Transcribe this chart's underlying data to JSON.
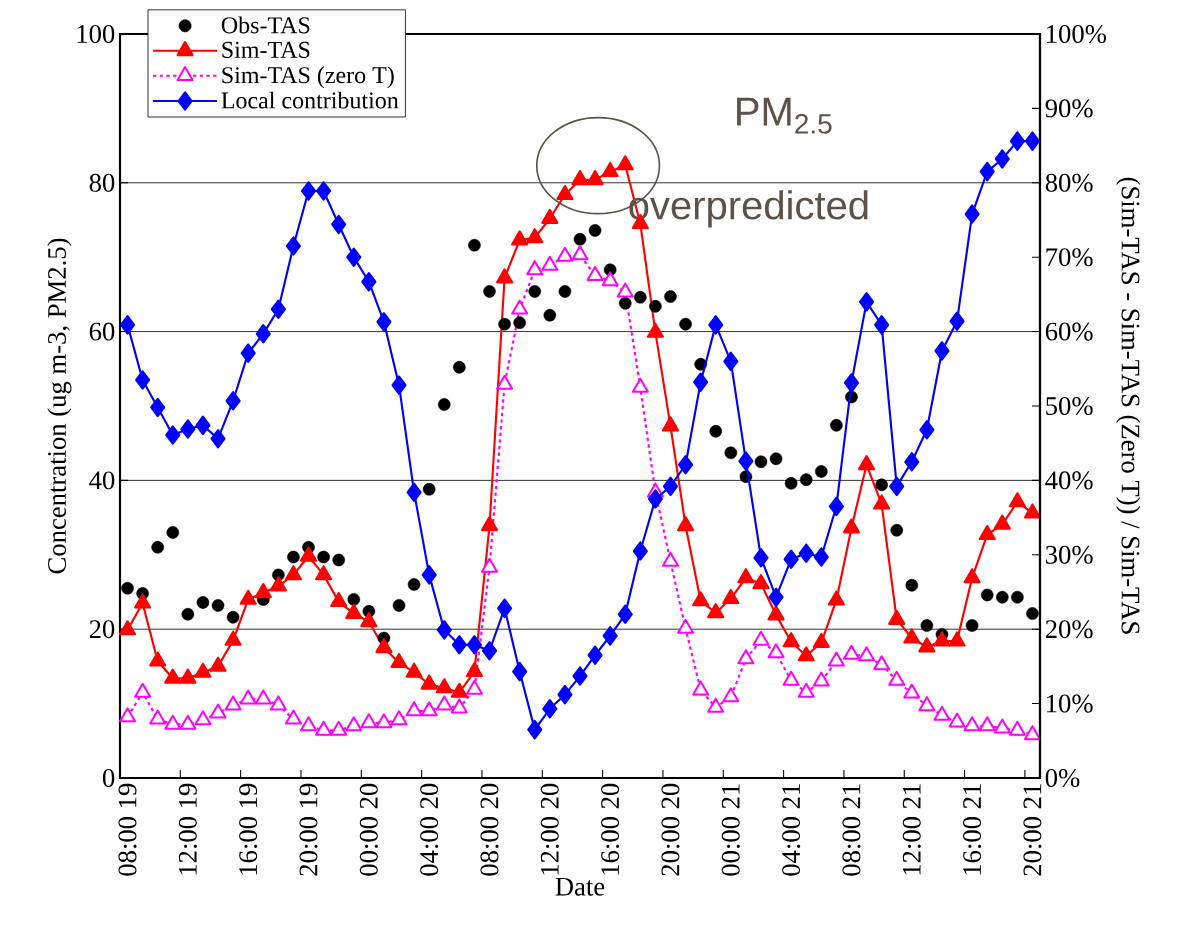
{
  "chart_data": {
    "type": "line",
    "annotations": [
      "PM$_{2.5}$",
      "overpredicted"
    ],
    "xlabel": "Date",
    "ylabel": "Concentration (ug m-3, PM2.5)",
    "y2label": "(Sim-TAS - Sim-TAS (Zero T)) / Sim-TAS",
    "categories": [
      "08:00 19",
      null,
      null,
      null,
      "12:00 19",
      null,
      null,
      null,
      "16:00 19",
      null,
      null,
      null,
      "20:00 19",
      null,
      null,
      null,
      "00:00 20",
      null,
      null,
      null,
      "04:00 20",
      null,
      null,
      null,
      "08:00 20",
      null,
      null,
      null,
      "12:00 20",
      null,
      null,
      null,
      "16:00 20",
      null,
      null,
      null,
      "20:00 20",
      null,
      null,
      null,
      "00:00 21",
      null,
      null,
      null,
      "04:00 21",
      null,
      null,
      null,
      "08:00 21",
      null,
      null,
      null,
      "12:00 21",
      null,
      null,
      null,
      "16:00 21",
      null,
      null,
      null,
      "20:00 21"
    ],
    "series": [
      {
        "name": "Obs-TAS",
        "type": "scatter",
        "marker": "circle",
        "color": "#000000",
        "values": [
          25.5,
          24.8,
          31.0,
          33.0,
          22.0,
          23.6,
          23.2,
          21.6,
          null,
          24.0,
          27.3,
          29.7,
          31.0,
          29.7,
          29.3,
          24.0,
          22.4,
          18.8,
          23.2,
          26.0,
          38.8,
          50.2,
          55.2,
          71.6,
          65.4,
          61.0,
          61.2,
          65.4,
          62.2,
          65.4,
          72.4,
          73.6,
          68.3,
          63.8,
          64.6,
          63.4,
          64.7,
          61.0,
          55.6,
          46.6,
          43.7,
          40.5,
          42.5,
          42.9,
          39.6,
          40.1,
          41.2,
          47.4,
          51.2,
          null,
          39.4,
          33.3,
          25.9,
          20.5,
          19.3,
          null,
          20.5,
          24.6,
          24.3,
          24.3,
          22.1
        ]
      },
      {
        "name": "Sim-TAS",
        "marker": "triangle",
        "line_style": "solid",
        "color": "#ff0000",
        "values": [
          19.9,
          23.5,
          15.7,
          13.4,
          13.4,
          14.2,
          15.0,
          18.5,
          24.0,
          24.9,
          25.8,
          27.3,
          29.8,
          27.3,
          23.7,
          22.1,
          21.0,
          17.5,
          15.5,
          14.2,
          12.6,
          12.1,
          11.5,
          14.3,
          33.9,
          67.2,
          72.3,
          72.6,
          75.2,
          78.4,
          80.4,
          80.4,
          81.5,
          82.4,
          74.5,
          59.9,
          47.3,
          33.9,
          23.8,
          22.2,
          24.1,
          26.9,
          26.1,
          21.9,
          18.3,
          16.4,
          18.2,
          23.9,
          33.6,
          42.1,
          36.8,
          21.3,
          18.8,
          17.6,
          18.4,
          18.4,
          26.9,
          32.7,
          34.1,
          37.1,
          35.6
        ]
      },
      {
        "name": "Sim-TAS (zero T)",
        "marker": "triangle",
        "line_style": "dotted",
        "color": "#ff00ff",
        "values": [
          8.2,
          11.5,
          7.9,
          7.2,
          7.2,
          7.8,
          8.7,
          9.8,
          10.6,
          10.6,
          9.8,
          7.9,
          7.0,
          6.4,
          6.4,
          7.0,
          7.4,
          7.4,
          7.8,
          9.0,
          9.0,
          9.8,
          9.4,
          11.9,
          28.3,
          52.9,
          63.0,
          68.3,
          68.9,
          70.1,
          70.3,
          67.5,
          66.8,
          65.3,
          52.5,
          38.4,
          29.1,
          20.1,
          11.8,
          9.5,
          10.9,
          16.0,
          18.5,
          16.8,
          13.1,
          11.5,
          13.0,
          15.7,
          16.6,
          16.4,
          15.2,
          13.1,
          11.4,
          9.7,
          8.4,
          7.5,
          7.0,
          7.0,
          6.7,
          6.4,
          5.8
        ]
      },
      {
        "name": "Local contribution",
        "marker": "diamond",
        "line_style": "solid",
        "axis": "y2",
        "color": "#0000ff",
        "values": [
          60.9,
          53.5,
          49.8,
          46.1,
          46.9,
          47.4,
          45.6,
          50.7,
          57.1,
          59.7,
          63.0,
          71.5,
          78.9,
          78.9,
          74.4,
          70.0,
          66.7,
          61.3,
          52.8,
          38.4,
          27.3,
          19.9,
          17.9,
          17.9,
          17.1,
          22.8,
          14.3,
          6.5,
          9.3,
          11.2,
          13.7,
          16.5,
          19.1,
          22.0,
          30.5,
          37.5,
          39.2,
          42.1,
          53.2,
          60.9,
          56.0,
          42.6,
          29.6,
          24.3,
          29.4,
          30.2,
          29.7,
          36.5,
          53.1,
          64.0,
          60.9,
          39.2,
          42.5,
          46.8,
          57.4,
          61.4,
          75.8,
          81.5,
          83.2,
          85.6,
          85.6
        ]
      }
    ],
    "ylim": [
      0,
      100
    ],
    "yticks": [
      0,
      20,
      40,
      60,
      80,
      100
    ],
    "y2lim": [
      0,
      100
    ],
    "y2ticks": [
      {
        "value": 0,
        "label": "0%"
      },
      {
        "value": 10,
        "label": "10%"
      },
      {
        "value": 20,
        "label": "20%"
      },
      {
        "value": 30,
        "label": "30%"
      },
      {
        "value": 40,
        "label": "40%"
      },
      {
        "value": 50,
        "label": "50%"
      },
      {
        "value": 60,
        "label": "60%"
      },
      {
        "value": 70,
        "label": "70%"
      },
      {
        "value": 80,
        "label": "80%"
      },
      {
        "value": 90,
        "label": "90%"
      },
      {
        "value": 100,
        "label": "100%"
      }
    ],
    "grid": "y",
    "legend": "top left"
  }
}
